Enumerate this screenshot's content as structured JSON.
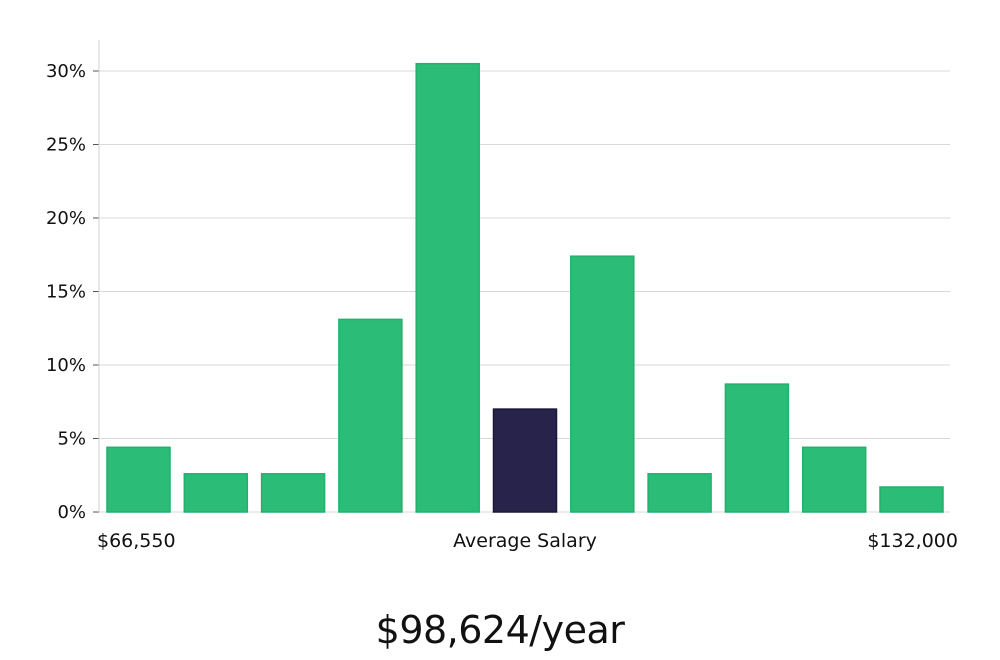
{
  "chart_data": {
    "type": "bar",
    "title": "",
    "xlabel": "",
    "ylabel": "",
    "ylim": [
      0,
      32
    ],
    "yticks": [
      0,
      5,
      10,
      15,
      20,
      25,
      30
    ],
    "ytick_suffix": "%",
    "grid": true,
    "values": [
      4.4,
      2.6,
      2.6,
      13.1,
      30.5,
      7.0,
      17.4,
      2.6,
      8.7,
      4.4,
      1.7
    ],
    "highlight_index": 5,
    "colors": {
      "bar": "#2bbd77",
      "highlight": "#28234a"
    },
    "x_labels": {
      "left": "$66,550",
      "center": "Average Salary",
      "right": "$132,000"
    }
  },
  "footer": {
    "salary": "$98,624/year"
  }
}
